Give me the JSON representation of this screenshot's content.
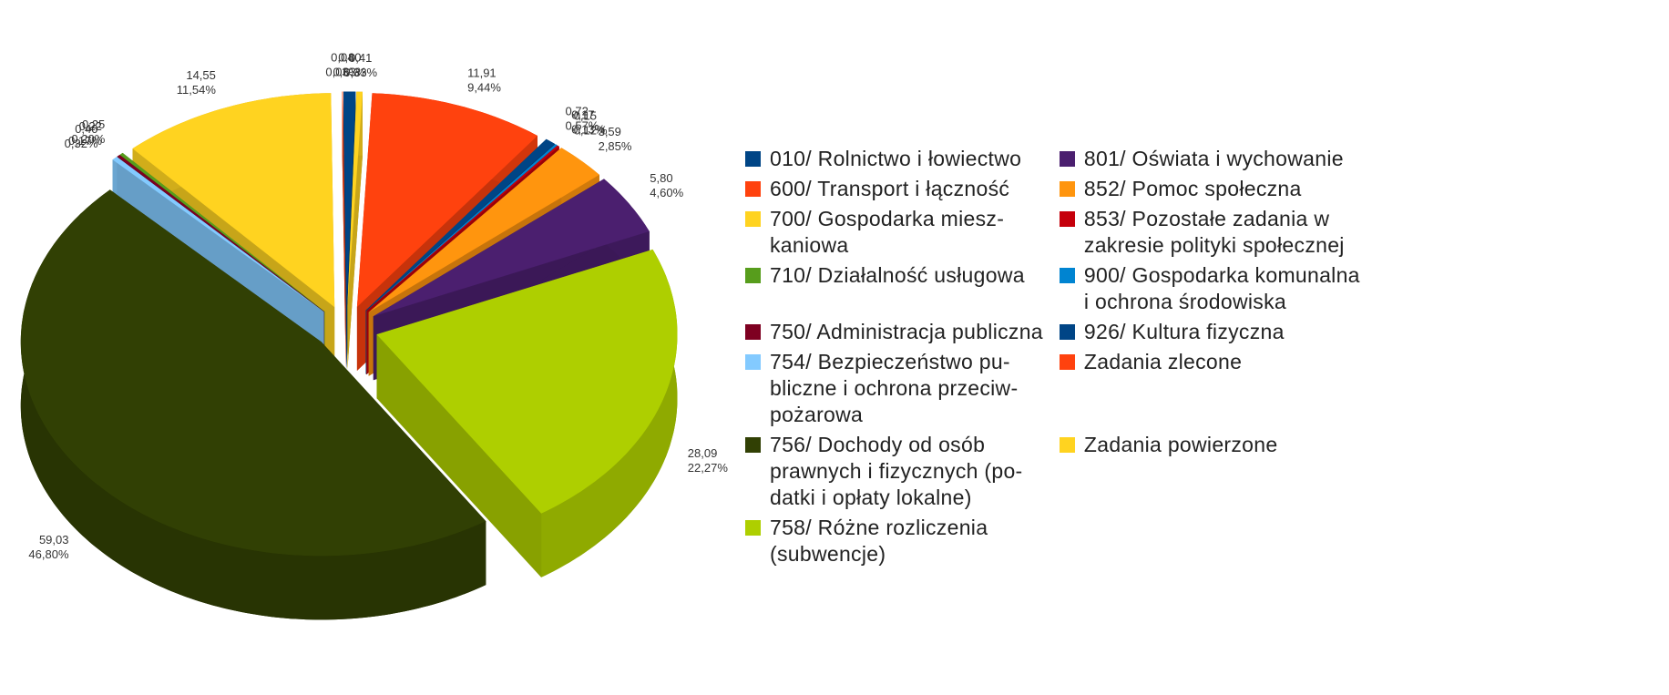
{
  "chart_data": {
    "type": "pie3d",
    "categories": [
      "010/ Rolnictwo i łowiectwo",
      "600/ Transport i łączność",
      "700/ Gospodarka miesz-\nkaniowa",
      "710/ Działalność usługowa",
      "750/ Administracja publiczna",
      "754/ Bezpieczeństwo pu-\nbliczne i ochrona przeciw-\npożarowa",
      "756/ Dochody od osób\nprawnych i fizycznych (po-\ndatki i opłaty lokalne)",
      "758/ Różne rozliczenia\n(subwencje)",
      "801/ Oświata i wychowanie",
      "852/ Pomoc społeczna",
      "853/ Pozostałe zadania w\nzakresie polityki społecznej",
      "900/ Gospodarka komunalna\ni ochrona środowiska",
      "926/ Kultura fizyczna",
      "Zadania zlecone",
      "Zadania powierzone"
    ],
    "values": [
      0.8,
      0.04,
      14.55,
      0.25,
      0.22,
      0.4,
      59.03,
      28.09,
      5.8,
      3.59,
      0.15,
      0.17,
      0.72,
      11.91,
      0.41
    ],
    "value_labels": [
      "0,80",
      "0,04",
      "14,55",
      "0,25",
      "0,22",
      "0,40",
      "59,03",
      "28,09",
      "5,80",
      "3,59",
      "0,15",
      "0,17",
      "0,72",
      "11,91",
      "0,41"
    ],
    "percentages": [
      0.63,
      0.03,
      11.54,
      0.2,
      0.17,
      0.32,
      46.8,
      22.27,
      4.6,
      2.85,
      0.12,
      0.13,
      0.57,
      9.44,
      0.33
    ],
    "percentage_labels": [
      "0,63%",
      "0,03%",
      "11,54%",
      "0,20%",
      "0,17%",
      "0,32%",
      "46,80%",
      "22,27%",
      "4,60%",
      "2,85%",
      "0,12%",
      "0,13%",
      "0,57%",
      "9,44%",
      "0,33%"
    ],
    "colors": [
      "#004586",
      "#ff420e",
      "#ffd320",
      "#579d1c",
      "#7e0021",
      "#83caff",
      "#314004",
      "#aecf00",
      "#4b1f6f",
      "#ff950e",
      "#c5000b",
      "#0084d1",
      "#004586",
      "#ff420e",
      "#ffd320"
    ],
    "legend": "right"
  }
}
